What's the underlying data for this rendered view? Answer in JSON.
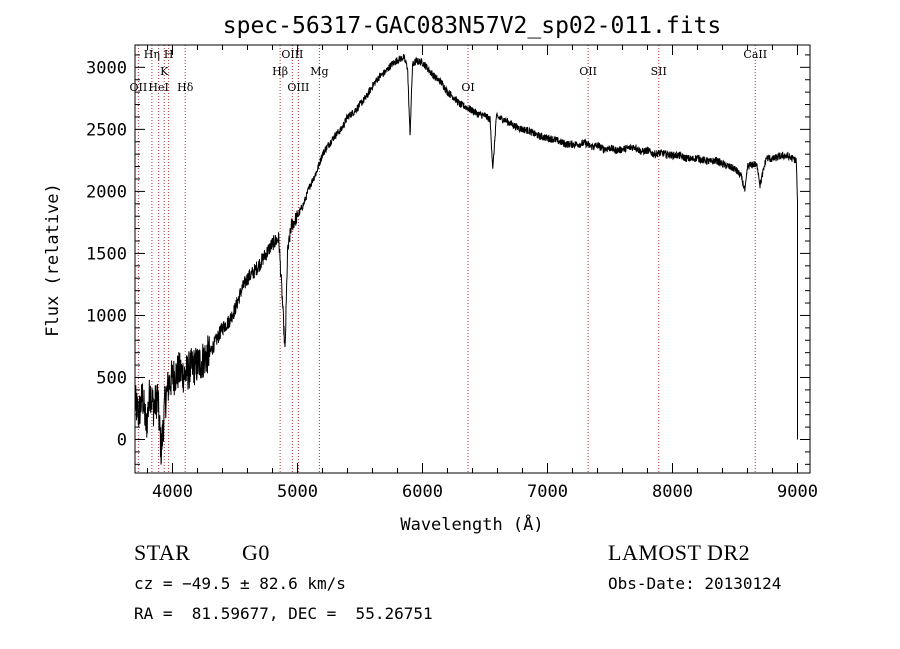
{
  "chart_data": {
    "type": "line",
    "title": "spec-56317-GAC083N57V2_sp02-011.fits",
    "xlabel": "Wavelength (Å)",
    "ylabel": "Flux (relative)",
    "xlim": [
      3700,
      9100
    ],
    "ylim": [
      -270,
      3180
    ],
    "xticks": [
      4000,
      5000,
      6000,
      7000,
      8000,
      9000
    ],
    "yticks": [
      0,
      500,
      1000,
      1500,
      2000,
      2500,
      3000
    ],
    "spectrum": {
      "x": [
        3700,
        3730,
        3760,
        3790,
        3820,
        3850,
        3880,
        3910,
        3940,
        3970,
        4000,
        4050,
        4100,
        4150,
        4200,
        4250,
        4300,
        4350,
        4400,
        4450,
        4500,
        4550,
        4600,
        4650,
        4700,
        4750,
        4800,
        4850,
        4880,
        4900,
        4920,
        4950,
        5000,
        5050,
        5100,
        5150,
        5200,
        5250,
        5300,
        5350,
        5400,
        5450,
        5500,
        5550,
        5600,
        5650,
        5700,
        5750,
        5800,
        5850,
        5880,
        5900,
        5920,
        5950,
        6000,
        6050,
        6100,
        6150,
        6200,
        6250,
        6300,
        6350,
        6400,
        6450,
        6500,
        6540,
        6563,
        6590,
        6650,
        6700,
        6750,
        6800,
        6850,
        6900,
        6950,
        7000,
        7050,
        7100,
        7150,
        7200,
        7250,
        7300,
        7350,
        7400,
        7450,
        7500,
        7550,
        7600,
        7650,
        7700,
        7750,
        7800,
        7850,
        7900,
        7950,
        8000,
        8050,
        8100,
        8150,
        8200,
        8250,
        8300,
        8350,
        8400,
        8450,
        8500,
        8550,
        8580,
        8600,
        8650,
        8680,
        8700,
        8750,
        8800,
        8850,
        8900,
        8950,
        8990,
        9000
      ],
      "y": [
        300,
        200,
        350,
        100,
        400,
        250,
        350,
        -100,
        300,
        450,
        500,
        550,
        520,
        580,
        600,
        650,
        700,
        800,
        900,
        950,
        1050,
        1200,
        1300,
        1350,
        1420,
        1500,
        1580,
        1620,
        1100,
        700,
        1500,
        1720,
        1800,
        1900,
        2050,
        2150,
        2300,
        2380,
        2450,
        2500,
        2600,
        2640,
        2700,
        2760,
        2850,
        2920,
        2960,
        3020,
        3060,
        3080,
        3000,
        2450,
        3020,
        3050,
        3040,
        2980,
        2920,
        2880,
        2800,
        2760,
        2700,
        2680,
        2650,
        2620,
        2610,
        2580,
        2180,
        2600,
        2580,
        2550,
        2520,
        2500,
        2490,
        2460,
        2440,
        2430,
        2420,
        2400,
        2380,
        2380,
        2380,
        2390,
        2360,
        2370,
        2340,
        2350,
        2330,
        2340,
        2350,
        2360,
        2320,
        2330,
        2300,
        2310,
        2300,
        2290,
        2290,
        2270,
        2260,
        2270,
        2250,
        2240,
        2250,
        2220,
        2200,
        2180,
        2120,
        2000,
        2200,
        2220,
        2200,
        2050,
        2270,
        2260,
        2280,
        2290,
        2270,
        2250,
        1900
      ]
    },
    "emission_lines": [
      {
        "label": "OII",
        "x": 3727
      },
      {
        "label": "Hη",
        "x": 3835
      },
      {
        "label": "HeI",
        "x": 3889
      },
      {
        "label": "K",
        "x": 3934
      },
      {
        "label": "H",
        "x": 3969
      },
      {
        "label": "Hδ",
        "x": 4102
      },
      {
        "label": "Hβ",
        "x": 4861
      },
      {
        "label": "OIII",
        "x": 4959
      },
      {
        "label": "OIII",
        "x": 5007
      },
      {
        "label": "Mg",
        "x": 5175
      },
      {
        "label": "OI",
        "x": 6364
      },
      {
        "label": "OII",
        "x": 7325
      },
      {
        "label": "SII",
        "x": 7890
      },
      {
        "label": "CaII",
        "x": 8662
      }
    ]
  },
  "info": {
    "class": "STAR",
    "subclass": "G0",
    "survey": "LAMOST DR2",
    "cz": "cz = −49.5 ± 82.6 km/s",
    "obsdate": "Obs-Date: 20130124",
    "radec": "RA =  81.59677, DEC =  55.26751"
  }
}
